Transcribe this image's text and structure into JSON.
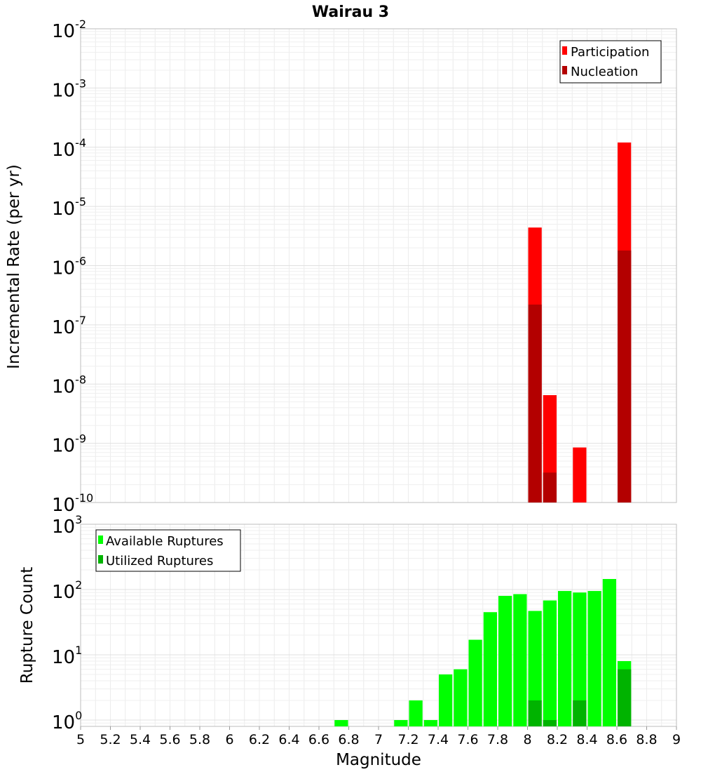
{
  "chart_data": [
    {
      "type": "bar",
      "title": "Wairau 3",
      "xlabel": "Magnitude",
      "ylabel": "Incremental Rate (per yr)",
      "yscale": "log",
      "ylim": [
        1e-10,
        0.01
      ],
      "xlim": [
        5,
        9
      ],
      "bin_width": 0.1,
      "legend_position": "top-right",
      "grid": true,
      "y_ticks": [
        {
          "base": "10",
          "exp": "-10",
          "value": 1e-10
        },
        {
          "base": "10",
          "exp": "-9",
          "value": 1e-09
        },
        {
          "base": "10",
          "exp": "-8",
          "value": 1e-08
        },
        {
          "base": "10",
          "exp": "-7",
          "value": 1e-07
        },
        {
          "base": "10",
          "exp": "-6",
          "value": 1e-06
        },
        {
          "base": "10",
          "exp": "-5",
          "value": 1e-05
        },
        {
          "base": "10",
          "exp": "-4",
          "value": 0.0001
        },
        {
          "base": "10",
          "exp": "-3",
          "value": 0.001
        },
        {
          "base": "10",
          "exp": "-2",
          "value": 0.01
        }
      ],
      "series": [
        {
          "name": "Participation",
          "color": "#ff0000",
          "x": [
            8.05,
            8.15,
            8.35,
            8.65
          ],
          "values": [
            4.4e-06,
            6.5e-09,
            8.5e-10,
            0.00012
          ]
        },
        {
          "name": "Nucleation",
          "color": "#b30000",
          "x": [
            8.05,
            8.15,
            8.65
          ],
          "values": [
            2.2e-07,
            3.2e-10,
            1.8e-06
          ]
        }
      ]
    },
    {
      "type": "bar",
      "title": "",
      "xlabel": "Magnitude",
      "ylabel": "Rupture Count",
      "yscale": "log",
      "ylim": [
        0.8,
        1000
      ],
      "xlim": [
        5,
        9
      ],
      "bin_width": 0.1,
      "legend_position": "top-left",
      "grid": true,
      "x_tick_labels": [
        "5",
        "5.2",
        "5.4",
        "5.6",
        "5.8",
        "6",
        "6.2",
        "6.4",
        "6.6",
        "6.8",
        "7",
        "7.2",
        "7.4",
        "7.6",
        "7.8",
        "8",
        "8.2",
        "8.4",
        "8.6",
        "8.8",
        "9"
      ],
      "y_ticks": [
        {
          "base": "10",
          "exp": "0",
          "value": 1
        },
        {
          "base": "10",
          "exp": "1",
          "value": 10
        },
        {
          "base": "10",
          "exp": "2",
          "value": 100
        },
        {
          "base": "10",
          "exp": "3",
          "value": 1000
        }
      ],
      "series": [
        {
          "name": "Available Ruptures",
          "color": "#00ff00",
          "x": [
            6.75,
            7.15,
            7.25,
            7.35,
            7.45,
            7.55,
            7.65,
            7.75,
            7.85,
            7.95,
            8.05,
            8.15,
            8.25,
            8.35,
            8.45,
            8.55,
            8.65
          ],
          "values": [
            1,
            1,
            2,
            1,
            5,
            6,
            17,
            45,
            80,
            85,
            47,
            68,
            95,
            90,
            95,
            145,
            8
          ]
        },
        {
          "name": "Utilized Ruptures",
          "color": "#00b300",
          "x": [
            8.05,
            8.15,
            8.35,
            8.65
          ],
          "values": [
            2,
            1,
            2,
            6
          ]
        }
      ]
    }
  ]
}
